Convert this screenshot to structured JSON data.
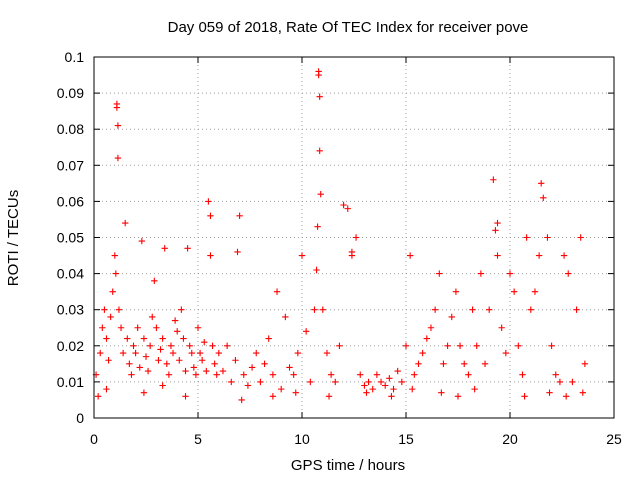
{
  "chart_data": {
    "type": "scatter",
    "title": "Day 059 of 2018, Rate Of TEC Index for receiver pove",
    "xlabel": "GPS time / hours",
    "ylabel": "ROTI / TECUs",
    "xlim": [
      0,
      25
    ],
    "ylim": [
      0,
      0.1
    ],
    "xticks": [
      0,
      5,
      10,
      15,
      20,
      25
    ],
    "yticks": [
      0,
      0.01,
      0.02,
      0.03,
      0.04,
      0.05,
      0.06,
      0.07,
      0.08,
      0.09,
      0.1
    ],
    "grid": true,
    "marker": "+",
    "marker_color": "#ff0000",
    "series": [
      {
        "x": [
          0.1,
          0.3,
          0.4,
          0.5,
          0.6,
          0.7,
          0.8,
          0.9,
          1.0,
          1.05,
          1.1,
          1.15,
          1.2,
          1.3,
          1.4,
          1.5,
          1.6,
          1.7,
          1.8,
          1.9,
          2.0,
          2.1,
          2.2,
          2.3,
          2.4,
          2.5,
          2.6,
          2.7,
          2.8,
          2.9,
          3.0,
          3.1,
          3.2,
          3.3,
          3.4,
          3.5,
          3.6,
          3.7,
          3.8,
          3.9,
          4.0,
          4.1,
          4.2,
          4.3,
          4.4,
          4.5,
          4.6,
          4.7,
          4.8,
          4.9,
          5.0,
          5.1,
          5.2,
          5.3,
          5.4,
          5.5,
          5.6,
          5.7,
          5.8,
          5.9,
          6.0,
          6.2,
          6.4,
          6.6,
          6.8,
          7.0,
          7.2,
          7.4,
          7.6,
          7.8,
          8.0,
          8.2,
          8.4,
          8.6,
          8.8,
          9.0,
          9.2,
          9.4,
          9.6,
          9.8,
          10.0,
          10.2,
          10.4,
          10.6,
          10.7,
          10.75,
          10.8,
          10.85,
          10.9,
          11.0,
          11.2,
          11.4,
          11.6,
          11.8,
          12.0,
          12.2,
          12.4,
          12.6,
          12.8,
          13.0,
          13.2,
          13.4,
          13.6,
          13.8,
          14.0,
          14.2,
          14.4,
          14.6,
          14.8,
          15.0,
          15.2,
          15.4,
          15.6,
          15.8,
          16.0,
          16.2,
          16.4,
          16.6,
          16.8,
          17.0,
          17.2,
          17.4,
          17.6,
          17.8,
          18.0,
          18.2,
          18.4,
          18.6,
          18.8,
          19.0,
          19.2,
          19.3,
          19.4,
          19.6,
          19.8,
          20.0,
          20.2,
          20.4,
          20.6,
          20.8,
          21.0,
          21.2,
          21.4,
          21.5,
          21.6,
          21.8,
          22.0,
          22.2,
          22.4,
          22.6,
          22.8,
          23.0,
          23.2,
          23.4,
          23.6,
          1.1,
          1.15,
          10.8,
          10.85,
          19.4,
          5.6,
          6.9,
          12.4,
          0.2,
          0.6,
          2.4,
          3.3,
          4.4,
          7.1,
          8.6,
          9.7,
          11.3,
          13.1,
          14.3,
          15.3,
          16.7,
          17.5,
          18.3,
          20.7,
          21.9,
          22.7,
          23.5
        ],
        "y": [
          0.012,
          0.018,
          0.025,
          0.03,
          0.022,
          0.016,
          0.028,
          0.035,
          0.045,
          0.04,
          0.086,
          0.072,
          0.03,
          0.025,
          0.018,
          0.054,
          0.022,
          0.015,
          0.012,
          0.02,
          0.018,
          0.025,
          0.014,
          0.049,
          0.022,
          0.017,
          0.013,
          0.02,
          0.028,
          0.038,
          0.025,
          0.016,
          0.019,
          0.022,
          0.047,
          0.015,
          0.012,
          0.02,
          0.018,
          0.027,
          0.024,
          0.016,
          0.03,
          0.022,
          0.013,
          0.047,
          0.02,
          0.018,
          0.014,
          0.012,
          0.025,
          0.018,
          0.016,
          0.021,
          0.013,
          0.06,
          0.045,
          0.02,
          0.015,
          0.012,
          0.018,
          0.013,
          0.02,
          0.01,
          0.016,
          0.056,
          0.012,
          0.009,
          0.014,
          0.018,
          0.01,
          0.015,
          0.022,
          0.012,
          0.035,
          0.008,
          0.028,
          0.014,
          0.012,
          0.018,
          0.045,
          0.024,
          0.01,
          0.03,
          0.041,
          0.053,
          0.096,
          0.074,
          0.062,
          0.03,
          0.018,
          0.012,
          0.01,
          0.02,
          0.059,
          0.058,
          0.045,
          0.05,
          0.012,
          0.009,
          0.01,
          0.008,
          0.012,
          0.01,
          0.009,
          0.011,
          0.008,
          0.013,
          0.01,
          0.02,
          0.045,
          0.012,
          0.015,
          0.018,
          0.022,
          0.025,
          0.03,
          0.04,
          0.015,
          0.02,
          0.028,
          0.035,
          0.02,
          0.015,
          0.012,
          0.03,
          0.02,
          0.04,
          0.015,
          0.03,
          0.066,
          0.052,
          0.045,
          0.025,
          0.018,
          0.04,
          0.035,
          0.02,
          0.012,
          0.05,
          0.03,
          0.035,
          0.045,
          0.065,
          0.061,
          0.05,
          0.02,
          0.012,
          0.01,
          0.045,
          0.04,
          0.01,
          0.03,
          0.05,
          0.015,
          0.087,
          0.081,
          0.095,
          0.089,
          0.054,
          0.056,
          0.046,
          0.046,
          0.006,
          0.008,
          0.007,
          0.009,
          0.006,
          0.005,
          0.006,
          0.007,
          0.006,
          0.007,
          0.006,
          0.008,
          0.007,
          0.006,
          0.008,
          0.006,
          0.007,
          0.006,
          0.007
        ]
      }
    ]
  }
}
